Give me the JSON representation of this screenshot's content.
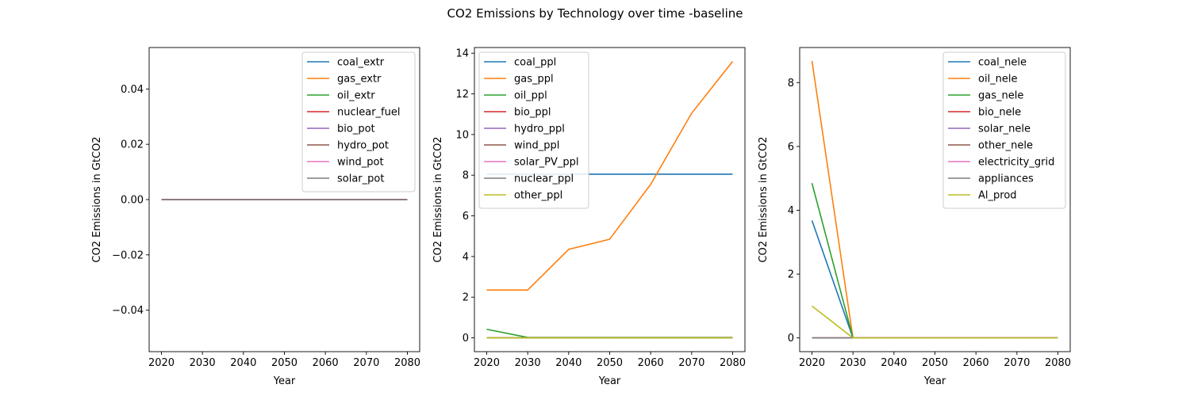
{
  "figure_title": "CO2 Emissions by Technology over time -baseline",
  "colors": {
    "c0": "#1f77b4",
    "c1": "#ff7f0e",
    "c2": "#2ca02c",
    "c3": "#d62728",
    "c4": "#9467bd",
    "c5": "#8c564b",
    "c6": "#e377c2",
    "c7": "#7f7f7f",
    "c8": "#bcbd22"
  },
  "chart_data": [
    {
      "type": "line",
      "xlabel": "Year",
      "ylabel": "CO2 Emissions in GtCO2",
      "xlim": [
        2017,
        2083
      ],
      "ylim": [
        -0.055,
        0.055
      ],
      "xticks": [
        2020,
        2030,
        2040,
        2050,
        2060,
        2070,
        2080
      ],
      "yticks": [
        -0.04,
        -0.02,
        0.0,
        0.02,
        0.04
      ],
      "ytick_labels": [
        "−0.04",
        "−0.02",
        "0.00",
        "0.02",
        "0.04"
      ],
      "legend_position": "upper right",
      "x": [
        2020,
        2030,
        2040,
        2050,
        2060,
        2070,
        2080
      ],
      "series": [
        {
          "name": "coal_extr",
          "color": "#1f77b4",
          "values": [
            0,
            0,
            0,
            0,
            0,
            0,
            0
          ]
        },
        {
          "name": "gas_extr",
          "color": "#ff7f0e",
          "values": [
            0,
            0,
            0,
            0,
            0,
            0,
            0
          ]
        },
        {
          "name": "oil_extr",
          "color": "#2ca02c",
          "values": [
            0,
            0,
            0,
            0,
            0,
            0,
            0
          ]
        },
        {
          "name": "nuclear_fuel",
          "color": "#d62728",
          "values": [
            0,
            0,
            0,
            0,
            0,
            0,
            0
          ]
        },
        {
          "name": "bio_pot",
          "color": "#9467bd",
          "values": [
            0,
            0,
            0,
            0,
            0,
            0,
            0
          ]
        },
        {
          "name": "hydro_pot",
          "color": "#8c564b",
          "values": [
            0,
            0,
            0,
            0,
            0,
            0,
            0
          ]
        },
        {
          "name": "wind_pot",
          "color": "#e377c2",
          "values": [
            0,
            0,
            0,
            0,
            0,
            0,
            0
          ]
        },
        {
          "name": "solar_pot",
          "color": "#7f7f7f",
          "values": [
            0,
            0,
            0,
            0,
            0,
            0,
            0
          ]
        }
      ]
    },
    {
      "type": "line",
      "xlabel": "Year",
      "ylabel": "CO2 Emissions in GtCO2",
      "xlim": [
        2017,
        2083
      ],
      "ylim": [
        -0.68,
        14.28
      ],
      "xticks": [
        2020,
        2030,
        2040,
        2050,
        2060,
        2070,
        2080
      ],
      "yticks": [
        0,
        2,
        4,
        6,
        8,
        10,
        12,
        14
      ],
      "ytick_labels": [
        "0",
        "2",
        "4",
        "6",
        "8",
        "10",
        "12",
        "14"
      ],
      "legend_position": "upper left",
      "x": [
        2020,
        2030,
        2040,
        2050,
        2060,
        2070,
        2080
      ],
      "series": [
        {
          "name": "coal_ppl",
          "color": "#1f77b4",
          "values": [
            8.05,
            8.05,
            8.05,
            8.05,
            8.05,
            8.05,
            8.05
          ]
        },
        {
          "name": "gas_ppl",
          "color": "#ff7f0e",
          "values": [
            2.35,
            2.35,
            4.35,
            4.85,
            7.55,
            11.05,
            13.6
          ]
        },
        {
          "name": "oil_ppl",
          "color": "#2ca02c",
          "values": [
            0.42,
            0.02,
            0.02,
            0.02,
            0.02,
            0.02,
            0.02
          ]
        },
        {
          "name": "bio_ppl",
          "color": "#d62728",
          "values": [
            0,
            0,
            0,
            0,
            0,
            0,
            0
          ]
        },
        {
          "name": "hydro_ppl",
          "color": "#9467bd",
          "values": [
            0,
            0,
            0,
            0,
            0,
            0,
            0
          ]
        },
        {
          "name": "wind_ppl",
          "color": "#8c564b",
          "values": [
            0,
            0,
            0,
            0,
            0,
            0,
            0
          ]
        },
        {
          "name": "solar_PV_ppl",
          "color": "#e377c2",
          "values": [
            0,
            0,
            0,
            0,
            0,
            0,
            0
          ]
        },
        {
          "name": "nuclear_ppl",
          "color": "#7f7f7f",
          "values": [
            0,
            0,
            0,
            0,
            0,
            0,
            0
          ]
        },
        {
          "name": "other_ppl",
          "color": "#bcbd22",
          "values": [
            0,
            0,
            0,
            0,
            0,
            0,
            0
          ]
        }
      ]
    },
    {
      "type": "line",
      "xlabel": "Year",
      "ylabel": "CO2 Emissions in GtCO2",
      "xlim": [
        2017,
        2083
      ],
      "ylim": [
        -0.43,
        9.1
      ],
      "xticks": [
        2020,
        2030,
        2040,
        2050,
        2060,
        2070,
        2080
      ],
      "yticks": [
        0,
        2,
        4,
        6,
        8
      ],
      "ytick_labels": [
        "0",
        "2",
        "4",
        "6",
        "8"
      ],
      "legend_position": "upper right",
      "x": [
        2020,
        2030,
        2040,
        2050,
        2060,
        2070,
        2080
      ],
      "series": [
        {
          "name": "coal_nele",
          "color": "#1f77b4",
          "values": [
            3.68,
            0,
            0,
            0,
            0,
            0,
            0
          ]
        },
        {
          "name": "oil_nele",
          "color": "#ff7f0e",
          "values": [
            8.68,
            0,
            0,
            0,
            0,
            0,
            0
          ]
        },
        {
          "name": "gas_nele",
          "color": "#2ca02c",
          "values": [
            4.85,
            0,
            0,
            0,
            0,
            0,
            0
          ]
        },
        {
          "name": "bio_nele",
          "color": "#d62728",
          "values": [
            0,
            0,
            0,
            0,
            0,
            0,
            0
          ]
        },
        {
          "name": "solar_nele",
          "color": "#9467bd",
          "values": [
            0,
            0,
            0,
            0,
            0,
            0,
            0
          ]
        },
        {
          "name": "other_nele",
          "color": "#8c564b",
          "values": [
            0,
            0,
            0,
            0,
            0,
            0,
            0
          ]
        },
        {
          "name": "electricity_grid",
          "color": "#e377c2",
          "values": [
            0,
            0,
            0,
            0,
            0,
            0,
            0
          ]
        },
        {
          "name": "appliances",
          "color": "#7f7f7f",
          "values": [
            0,
            0,
            0,
            0,
            0,
            0,
            0
          ]
        },
        {
          "name": "Al_prod",
          "color": "#bcbd22",
          "values": [
            1.0,
            0,
            0,
            0,
            0,
            0,
            0
          ]
        }
      ]
    }
  ]
}
